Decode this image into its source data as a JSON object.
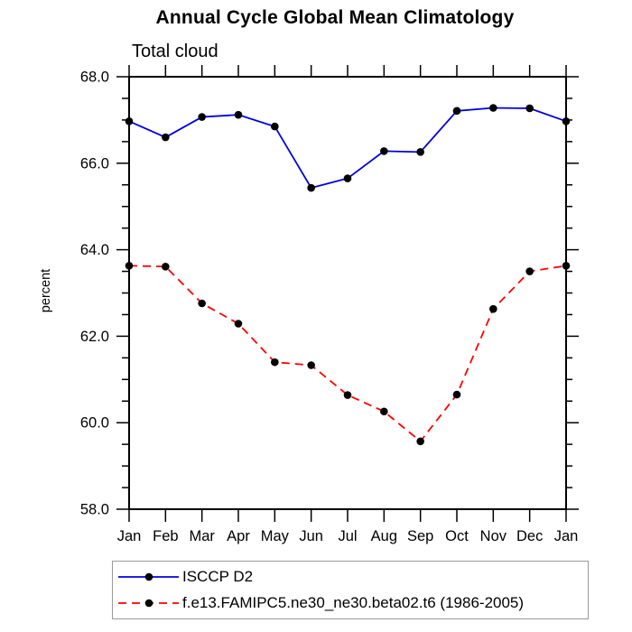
{
  "title": "Annual Cycle Global Mean Climatology",
  "subtitle": "Total cloud",
  "ylabel": "percent",
  "colors": {
    "background": "#ffffff",
    "axis": "#000000",
    "text": "#000000",
    "legend_border": "#9a9a9a",
    "series_blue": "#0000e0",
    "series_red": "#ff0000",
    "marker": "#000000"
  },
  "chart_data": {
    "type": "line",
    "title": "Annual Cycle Global Mean Climatology",
    "subtitle": "Total cloud",
    "xlabel": "",
    "ylabel": "percent",
    "categories": [
      "Jan",
      "Feb",
      "Mar",
      "Apr",
      "May",
      "Jun",
      "Jul",
      "Aug",
      "Sep",
      "Oct",
      "Nov",
      "Dec",
      "Jan"
    ],
    "ylim": [
      58.0,
      68.0
    ],
    "ytick_major_step": 2.0,
    "ytick_minor_step": 0.5,
    "ytick_labels": [
      "58.0",
      "60.0",
      "62.0",
      "64.0",
      "66.0",
      "68.0"
    ],
    "grid": false,
    "ticks": "outward-all-sides",
    "legend_position": "bottom-left-box",
    "series": [
      {
        "name": "ISCCP D2",
        "color": "#0000e0",
        "line_style": "solid",
        "marker": "circle",
        "marker_color": "#000000",
        "values": [
          66.97,
          66.6,
          67.07,
          67.12,
          66.85,
          65.43,
          65.65,
          66.28,
          66.26,
          67.21,
          67.28,
          67.27,
          66.97
        ]
      },
      {
        "name": "f.e13.FAMIPC5.ne30_ne30.beta02.t6 (1986-2005)",
        "color": "#ff0000",
        "line_style": "dashed",
        "marker": "circle",
        "marker_color": "#000000",
        "values": [
          63.63,
          63.61,
          62.76,
          62.29,
          61.4,
          61.33,
          60.64,
          60.26,
          59.57,
          60.65,
          62.63,
          63.5,
          63.63
        ]
      }
    ]
  }
}
